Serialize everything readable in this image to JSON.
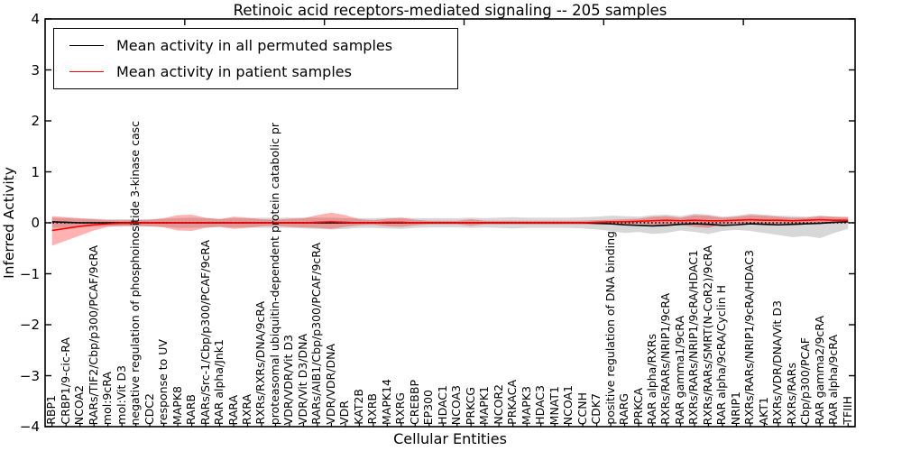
{
  "title": "Retinoic acid receptors-mediated signaling -- 205 samples",
  "legend": {
    "entries": [
      {
        "label": "Mean activity in all permuted samples",
        "color": "#000000"
      },
      {
        "label": "Mean activity in patient samples",
        "color": "#ff0000"
      }
    ]
  },
  "colors": {
    "frame": "#000000",
    "background": "#ffffff",
    "permuted_line": "#000000",
    "patient_line": "#ff0000",
    "permuted_band": "rgba(110,110,110,0.28)",
    "patient_band": "rgba(255,0,0,0.30)"
  },
  "chart_data": {
    "type": "line",
    "title": "Retinoic acid receptors-mediated signaling -- 205 samples",
    "xlabel": "Cellular Entities",
    "ylabel": "Inferred Activity",
    "ylim": [
      -4,
      4
    ],
    "yticks": [
      4,
      3,
      2,
      1,
      0,
      -1,
      -2,
      -3,
      -4
    ],
    "grid": false,
    "legend_position": "upper left",
    "zero_line_style": "dotted",
    "categories": [
      "RBP1",
      "CRBP1/9-cic-RA",
      "NCOA2",
      "RARs/TIF2/Cbp/p300/PCAF/9cRA",
      "mol:9cRA",
      "mol:Vit D3",
      "negative regulation of phosphoinositide 3-kinase casc",
      "CDC2",
      "response to UV",
      "MAPK8",
      "RARB",
      "RARs/Src-1/Cbp/p300/PCAF/9cRA",
      "RAR alpha/Jnk1",
      "RARA",
      "RXRA",
      "RXRs/RXRs/DNA/9cRA",
      "proteasomal ubiquitin-dependent protein catabolic pr",
      "VDR/VDR/Vit D3",
      "VDR/Vit D3/DNA",
      "RARs/AIB1/Cbp/p300/PCAF/9cRA",
      "VDR/VDR/DNA",
      "VDR",
      "KAT2B",
      "RXRB",
      "MAPK14",
      "RXRG",
      "CREBBP",
      "EP300",
      "HDAC1",
      "NCOA3",
      "PRKCG",
      "MAPK1",
      "NCOR2",
      "PRKACA",
      "MAPK3",
      "HDAC3",
      "MNAT1",
      "NCOA1",
      "CCNH",
      "CDK7",
      "positive regulation of DNA binding",
      "RARG",
      "PRKCA",
      "RAR alpha/RXRs",
      "RXRs/RARs/NRIP1/9cRA",
      "RAR gamma1/9cRA",
      "RXRs/RARs/NRIP1/9cRA/HDAC1",
      "RXRs/RARs/SMRT(N-CoR2)/9cRA",
      "RAR alpha/9cRA/Cyclin H",
      "NRIP1",
      "RXRs/RARs/NRIP1/9cRA/HDAC3",
      "AKT1",
      "RXRs/VDR/DNA/Vit D3",
      "RXRs/RARs",
      "Cbp/p300/PCAF",
      "RAR gamma2/9cRA",
      "RAR alpha/9cRA",
      "TFIIH"
    ],
    "series": [
      {
        "name": "Mean activity in all permuted samples",
        "color": "#000000",
        "values": [
          0.02,
          0.01,
          0,
          0,
          0,
          0,
          0,
          0,
          0,
          0,
          0,
          0,
          0,
          0,
          0,
          0,
          0,
          0,
          0,
          0,
          0,
          0,
          0,
          0,
          0,
          0,
          0,
          0,
          0,
          0,
          0,
          0,
          0,
          0,
          0,
          0,
          0,
          0,
          0,
          -0.01,
          -0.02,
          -0.04,
          -0.05,
          -0.06,
          -0.05,
          -0.03,
          -0.02,
          -0.03,
          -0.05,
          -0.04,
          -0.02,
          -0.03,
          -0.04,
          -0.03,
          -0.02,
          -0.01,
          0.01,
          0.02
        ],
        "band_hi": [
          0.1,
          0.09,
          0.08,
          0.08,
          0.07,
          0.07,
          0.07,
          0.07,
          0.08,
          0.09,
          0.1,
          0.09,
          0.08,
          0.09,
          0.09,
          0.1,
          0.1,
          0.1,
          0.1,
          0.1,
          0.1,
          0.09,
          0.09,
          0.09,
          0.1,
          0.1,
          0.09,
          0.09,
          0.09,
          0.09,
          0.1,
          0.09,
          0.1,
          0.11,
          0.1,
          0.1,
          0.1,
          0.1,
          0.11,
          0.12,
          0.14,
          0.13,
          0.12,
          0.15,
          0.16,
          0.13,
          0.18,
          0.16,
          0.12,
          0.14,
          0.18,
          0.16,
          0.14,
          0.13,
          0.12,
          0.14,
          0.12,
          0.1
        ],
        "band_lo": [
          -0.1,
          -0.09,
          -0.08,
          -0.08,
          -0.07,
          -0.07,
          -0.07,
          -0.07,
          -0.08,
          -0.1,
          -0.1,
          -0.09,
          -0.08,
          -0.09,
          -0.09,
          -0.1,
          -0.1,
          -0.1,
          -0.11,
          -0.12,
          -0.13,
          -0.12,
          -0.1,
          -0.1,
          -0.11,
          -0.12,
          -0.1,
          -0.09,
          -0.09,
          -0.09,
          -0.1,
          -0.09,
          -0.1,
          -0.11,
          -0.1,
          -0.1,
          -0.1,
          -0.1,
          -0.11,
          -0.13,
          -0.16,
          -0.2,
          -0.18,
          -0.22,
          -0.2,
          -0.15,
          -0.18,
          -0.22,
          -0.16,
          -0.14,
          -0.16,
          -0.2,
          -0.24,
          -0.28,
          -0.26,
          -0.3,
          -0.2,
          -0.12
        ]
      },
      {
        "name": "Mean activity in patient samples",
        "color": "#ff0000",
        "values": [
          -0.15,
          -0.11,
          -0.07,
          -0.04,
          -0.02,
          -0.01,
          -0.01,
          0,
          0,
          0,
          0,
          0,
          0,
          0,
          0,
          0,
          0,
          0,
          0,
          0.01,
          0.02,
          0.01,
          0,
          0,
          0.01,
          0.01,
          0,
          0,
          0,
          0,
          0,
          0,
          0,
          0,
          0,
          0,
          0,
          0,
          0,
          0.01,
          0.02,
          0.02,
          0.03,
          0.04,
          0.05,
          0.04,
          0.05,
          0.04,
          0.04,
          0.05,
          0.06,
          0.05,
          0.05,
          0.04,
          0.05,
          0.06,
          0.05,
          0.05
        ],
        "band_hi": [
          0.13,
          0.11,
          0.09,
          0.07,
          0.05,
          0.05,
          0.05,
          0.06,
          0.09,
          0.15,
          0.16,
          0.1,
          0.07,
          0.12,
          0.1,
          0.07,
          0.06,
          0.08,
          0.09,
          0.15,
          0.2,
          0.15,
          0.07,
          0.05,
          0.08,
          0.1,
          0.06,
          0.04,
          0.04,
          0.04,
          0.07,
          0.04,
          0.04,
          0.04,
          0.04,
          0.04,
          0.04,
          0.04,
          0.04,
          0.05,
          0.06,
          0.07,
          0.08,
          0.12,
          0.13,
          0.1,
          0.15,
          0.14,
          0.1,
          0.12,
          0.15,
          0.14,
          0.12,
          0.1,
          0.1,
          0.13,
          0.12,
          0.12
        ],
        "band_lo": [
          -0.45,
          -0.35,
          -0.25,
          -0.15,
          -0.08,
          -0.06,
          -0.06,
          -0.07,
          -0.09,
          -0.15,
          -0.16,
          -0.1,
          -0.08,
          -0.12,
          -0.1,
          -0.07,
          -0.06,
          -0.08,
          -0.09,
          -0.1,
          -0.12,
          -0.08,
          -0.05,
          -0.04,
          -0.07,
          -0.08,
          -0.05,
          -0.03,
          -0.03,
          -0.03,
          -0.06,
          -0.03,
          -0.03,
          -0.03,
          -0.03,
          -0.03,
          -0.03,
          -0.03,
          -0.03,
          -0.03,
          -0.03,
          -0.03,
          -0.02,
          -0.04,
          -0.05,
          -0.04,
          -0.08,
          -0.1,
          -0.03,
          -0.02,
          -0.03,
          -0.04,
          -0.02,
          -0.02,
          -0.01,
          -0.02,
          -0.01,
          0.0
        ]
      }
    ]
  }
}
